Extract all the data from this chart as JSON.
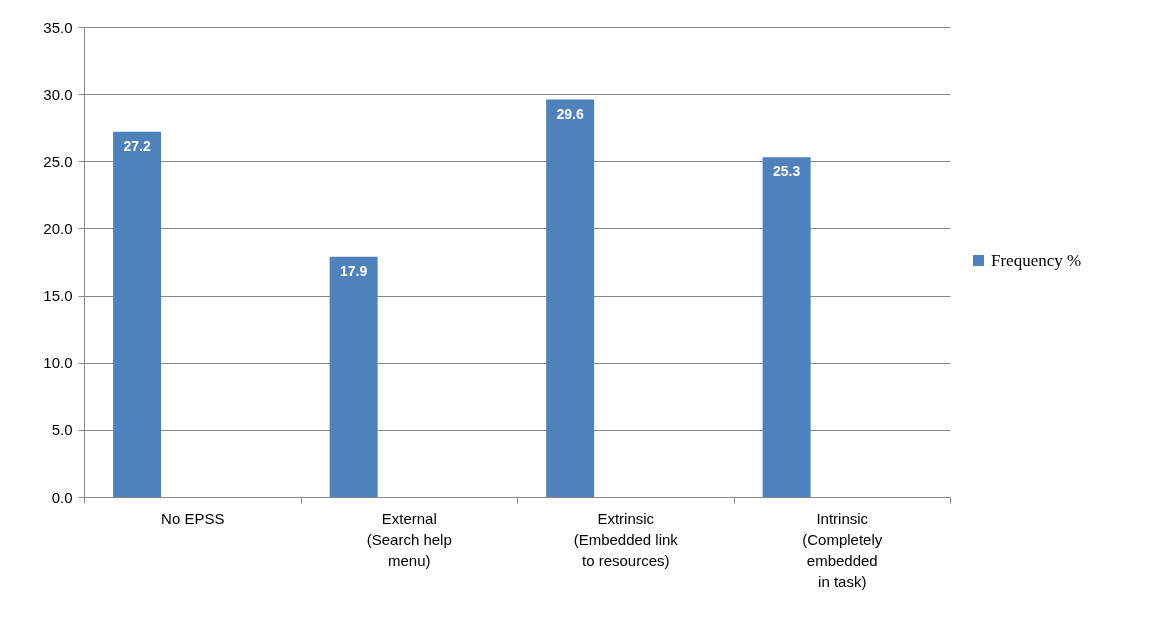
{
  "chart_data": {
    "type": "bar",
    "categories": [
      "No EPSS",
      "External\n(Search help\nmenu)",
      "Extrinsic\n(Embedded link\nto resources)",
      "Intrinsic\n(Completely\nembedded\nin task)"
    ],
    "series": [
      {
        "name": "Frequency %",
        "color": "#4f81bd",
        "values": [
          27.2,
          17.9,
          29.6,
          25.3
        ]
      }
    ],
    "ylim": [
      0,
      35
    ],
    "yticks": [
      {
        "value": 0,
        "label": "0.0"
      },
      {
        "value": 5,
        "label": "5.0"
      },
      {
        "value": 10,
        "label": "10.0"
      },
      {
        "value": 15,
        "label": "15.0"
      },
      {
        "value": 20,
        "label": "20.0"
      },
      {
        "value": 25,
        "label": "25.0"
      },
      {
        "value": 30,
        "label": "30.0"
      },
      {
        "value": 35,
        "label": "35.0"
      }
    ],
    "grid": "y",
    "legend": "right",
    "data_labels": true
  }
}
